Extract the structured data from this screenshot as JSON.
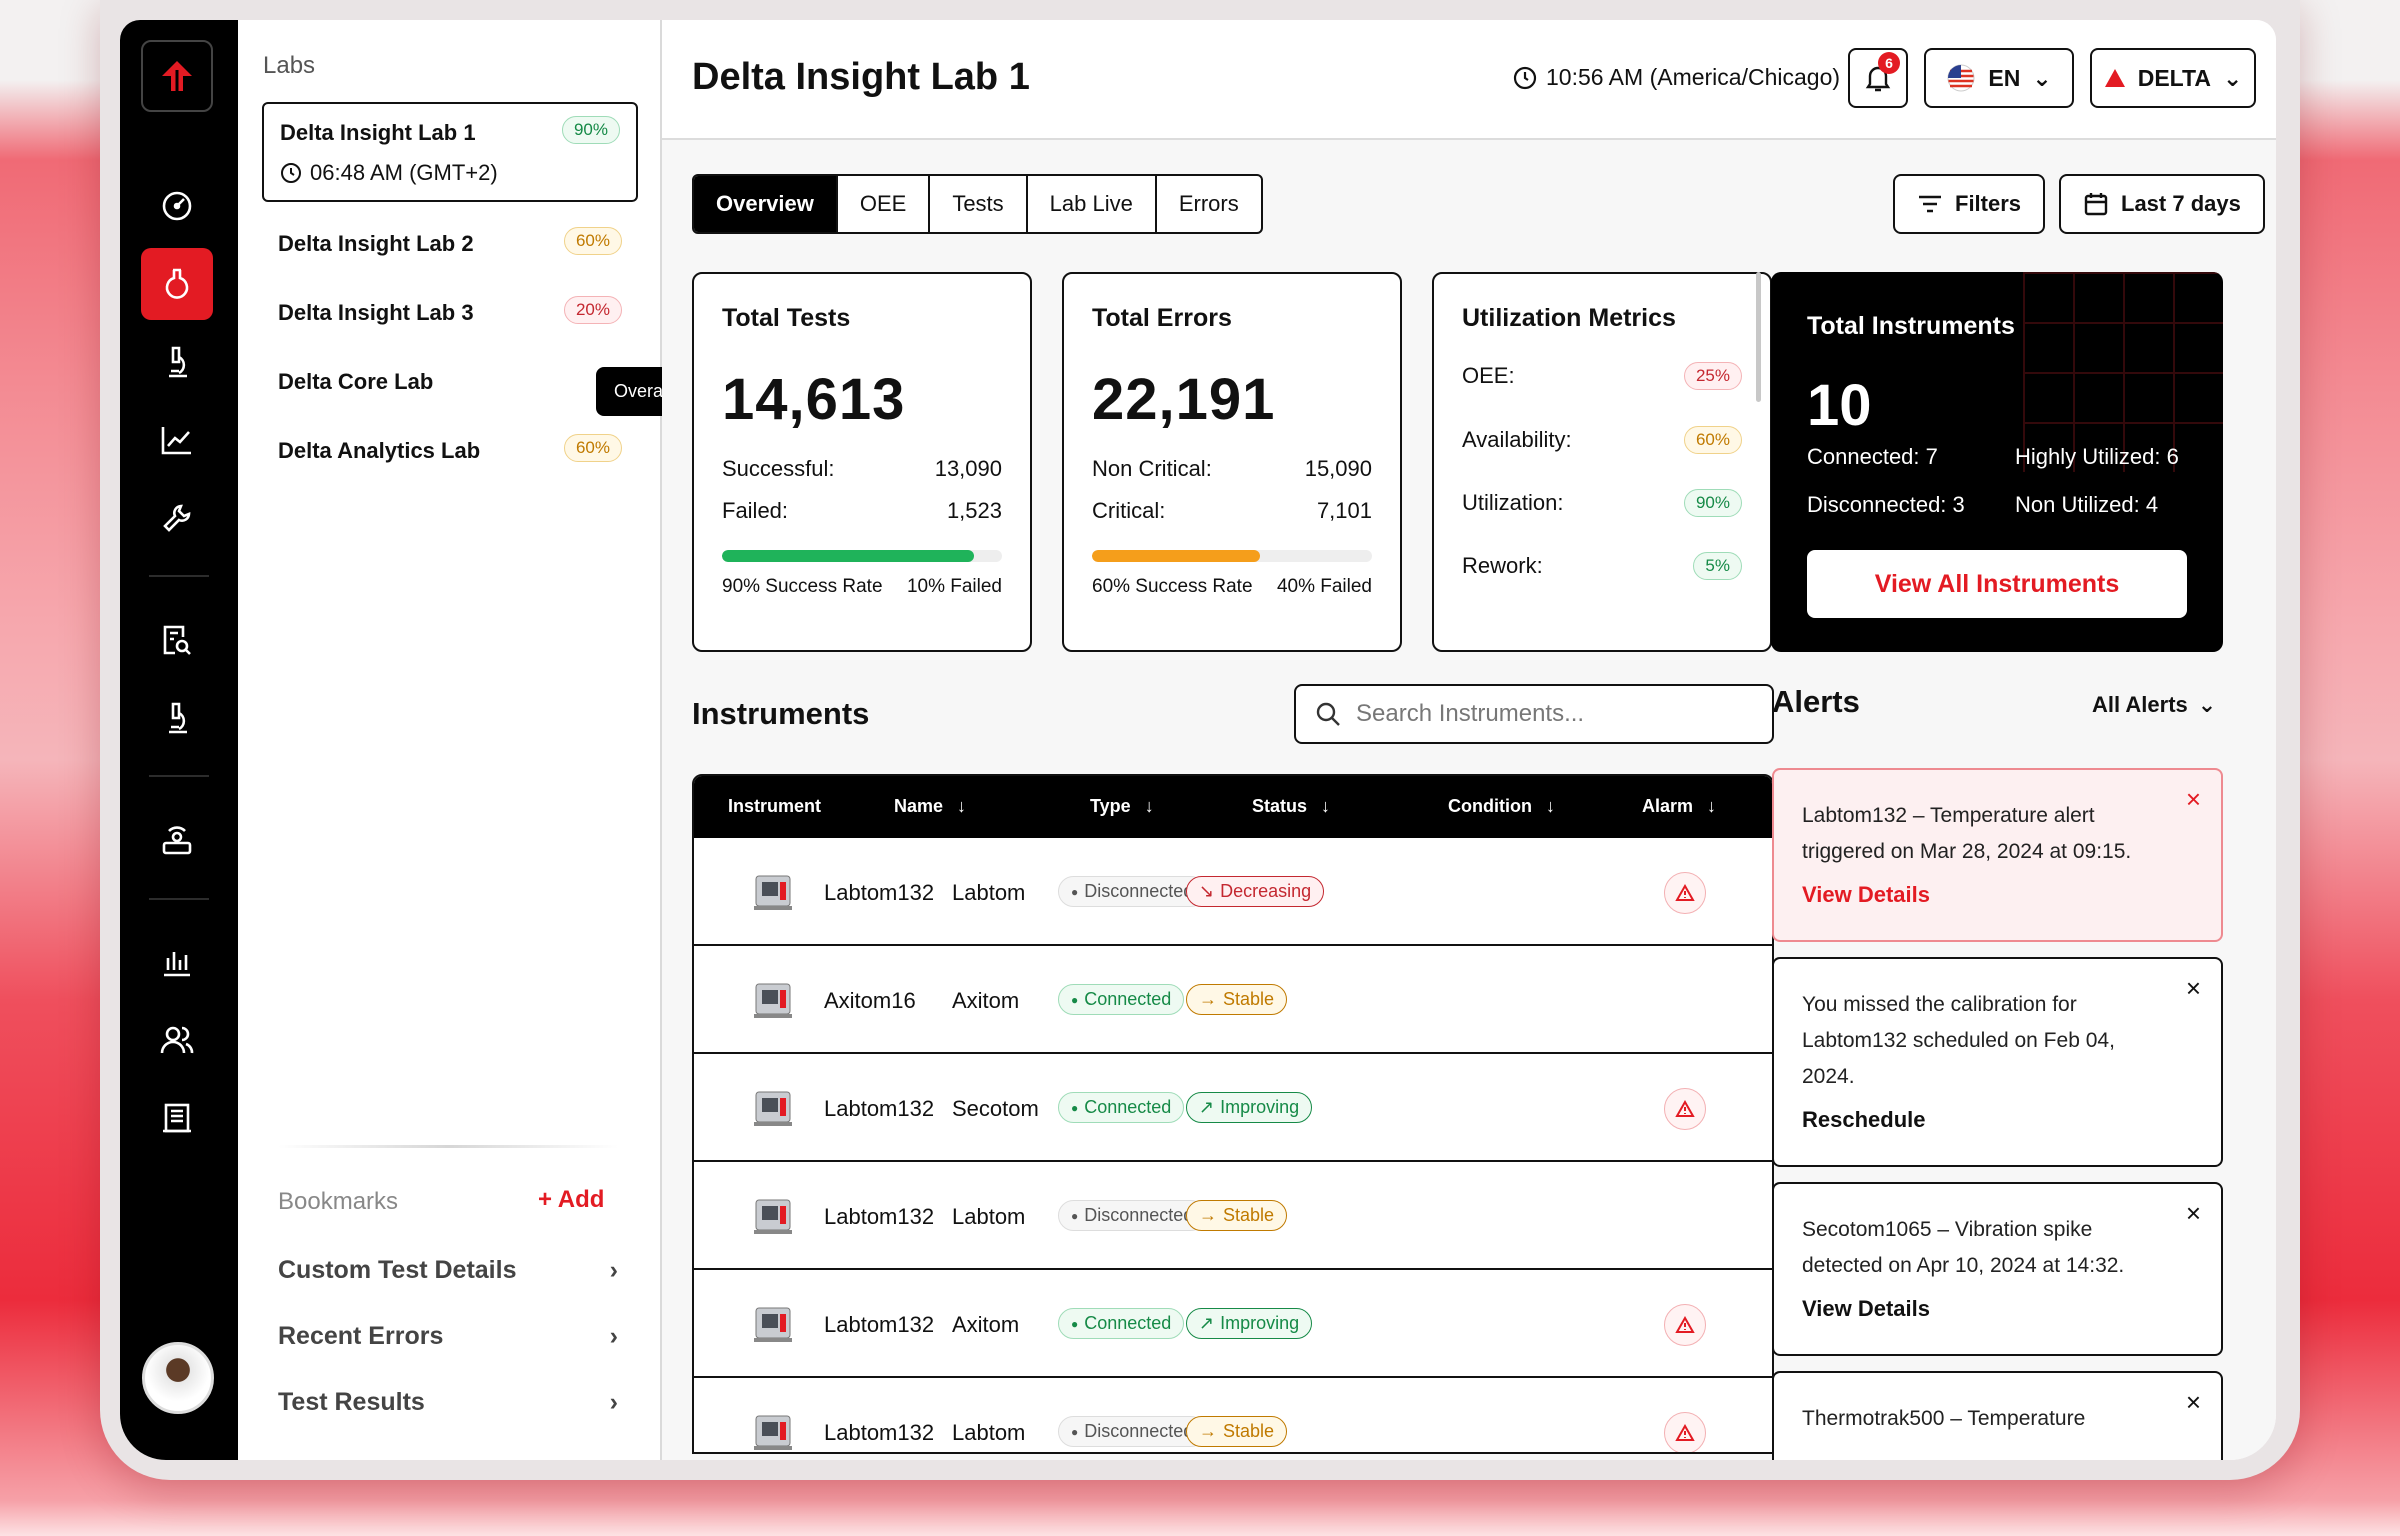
{
  "sidebar": {
    "logo": "arrow-up-logo",
    "icons": [
      "gauge-icon",
      "flask-icon",
      "microscope-icon",
      "chart-line-icon",
      "wrench-icon",
      "report-search-icon",
      "microscope-icon",
      "sensor-icon",
      "bar-chart-icon",
      "users-icon",
      "building-icon"
    ],
    "active_icon": "flask-icon"
  },
  "labs": {
    "header": "Labs",
    "items": [
      {
        "name": "Delta Insight Lab 1",
        "time": "06:48 AM (GMT+2)",
        "pct": "90%",
        "tone": "green"
      },
      {
        "name": "Delta Insight Lab 2",
        "pct": "60%",
        "tone": "yellow"
      },
      {
        "name": "Delta Insight Lab 3",
        "pct": "20%",
        "tone": "red"
      },
      {
        "name": "Delta Core Lab"
      },
      {
        "name": "Delta Analytics Lab",
        "pct": "60%",
        "tone": "yellow"
      }
    ],
    "tooltip": "Overall Lab Utilization",
    "bookmarks": {
      "header": "Bookmarks",
      "add": "Add",
      "items": [
        "Custom Test Details",
        "Recent Errors",
        "Test Results"
      ]
    }
  },
  "header": {
    "title": "Delta Insight Lab 1",
    "clock": "10:56 AM (America/Chicago)",
    "notifications": "6",
    "language": "EN",
    "brand": "DELTA"
  },
  "tabs": [
    "Overview",
    "OEE",
    "Tests",
    "Lab Live",
    "Errors"
  ],
  "active_tab": "Overview",
  "filters": "Filters",
  "date_range": "Last 7 days",
  "total_tests": {
    "title": "Total Tests",
    "value": "14,613",
    "successful_label": "Successful:",
    "successful": "13,090",
    "failed_label": "Failed:",
    "failed": "1,523",
    "progress": 0.9,
    "left_caption": "90% Success Rate",
    "right_caption": "10% Failed"
  },
  "total_errors": {
    "title": "Total Errors",
    "value": "22,191",
    "noncritical_label": "Non Critical:",
    "noncritical": "15,090",
    "critical_label": "Critical:",
    "critical": "7,101",
    "progress": 0.6,
    "left_caption": "60% Success Rate",
    "right_caption": "40% Failed"
  },
  "utilization": {
    "title": "Utilization Metrics",
    "metrics": [
      {
        "label": "OEE:",
        "value": "25%",
        "tone": "red"
      },
      {
        "label": "Availability:",
        "value": "60%",
        "tone": "yellow"
      },
      {
        "label": "Utilization:",
        "value": "90%",
        "tone": "green"
      },
      {
        "label": "Rework:",
        "value": "5%",
        "tone": "green"
      }
    ]
  },
  "instruments_card": {
    "title": "Total Instruments",
    "value": "10",
    "connected": "Connected: 7",
    "disconnected": "Disconnected: 3",
    "highly": "Highly Utilized: 6",
    "non": "Non Utilized: 4",
    "button": "View All Instruments"
  },
  "instruments": {
    "title": "Instruments",
    "search_placeholder": "Search Instruments...",
    "columns": [
      "Instrument",
      "Name",
      "Type",
      "Status",
      "Condition",
      "Alarm"
    ],
    "rows": [
      {
        "name": "Labtom132",
        "type": "Labtom",
        "status": "Disconnected",
        "condition": "Decreasing",
        "alarm": true
      },
      {
        "name": "Axitom16",
        "type": "Axitom",
        "status": "Connected",
        "condition": "Stable",
        "alarm": false
      },
      {
        "name": "Labtom132",
        "type": "Secotom",
        "status": "Connected",
        "condition": "Improving",
        "alarm": true
      },
      {
        "name": "Labtom132",
        "type": "Labtom",
        "status": "Disconnected",
        "condition": "Stable",
        "alarm": false
      },
      {
        "name": "Labtom132",
        "type": "Axitom",
        "status": "Connected",
        "condition": "Improving",
        "alarm": true
      },
      {
        "name": "Labtom132",
        "type": "Labtom",
        "status": "Disconnected",
        "condition": "Stable",
        "alarm": true
      }
    ]
  },
  "alerts": {
    "title": "Alerts",
    "filter": "All Alerts",
    "items": [
      {
        "message": "Labtom132 – Temperature alert triggered on Mar 28, 2024 at 09:15.",
        "action": "View Details"
      },
      {
        "message": "You missed the calibration for Labtom132 scheduled on Feb 04, 2024.",
        "action": "Reschedule"
      },
      {
        "message": "Secotom1065 – Vibration spike detected on Apr 10, 2024 at 14:32.",
        "action": "View Details"
      },
      {
        "message": "Thermotrak500 – Temperature"
      }
    ]
  },
  "colors": {
    "accent": "#e31b23",
    "success": "#1fb35a",
    "warning": "#f59e1b"
  }
}
